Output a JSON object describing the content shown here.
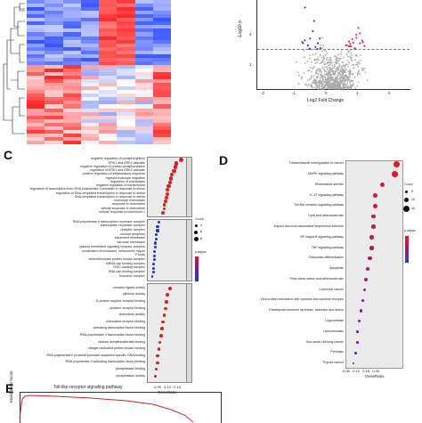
{
  "panelA": {
    "heatmap": {
      "type": "heatmap",
      "rows": 40,
      "cols": 8,
      "colors": {
        "low": "#3f5bd6",
        "mid": "#ffffff",
        "high": "#e82a2a"
      }
    }
  },
  "panelB": {
    "ylabel": "-Log10 p",
    "xlabel": "Log2 Fold Change",
    "yticks": [
      "2",
      "1"
    ],
    "xticks": [
      "-2",
      "-1",
      "0",
      "1",
      "2"
    ]
  },
  "panelC": {
    "label": "C",
    "facets": [
      {
        "terms": [
          "negative regulation of phosphorylation",
          "ERK1 and ERK2 cascade",
          "negative regulation of protein phosphorylation",
          "regulation of ERK1 and ERK2 cascade",
          "positive regulation of inflammatory response",
          "myeloid leukocyte migration",
          "regulation of chemotaxis",
          "negative regulation of transcription",
          "regulation of transcription from RNA polymerase II promoter in response to stress",
          "regulation of DNA-templated transcription in response to stress",
          "DNA-templated transcription in response to stress",
          "monocyte chemotaxis",
          "response to chemokine",
          "cellular response to chemokine",
          "cellular response to interleukin-1"
        ],
        "ratios": [
          0.15,
          0.13,
          0.125,
          0.12,
          0.11,
          0.105,
          0.1,
          0.095,
          0.09,
          0.09,
          0.085,
          0.08,
          0.075,
          0.075,
          0.07
        ]
      },
      {
        "terms": [
          "RNA polymerase II transcription repressor complex",
          "transcription repressor complex",
          "receptor complex",
          "nuclear periphery",
          "basement membrane",
          "vacuolar membrane",
          "plasma membrane signaling receptor complex",
          "condensed chromosome, centromeric region",
          "P-body",
          "serine/threonine protein kinase complex",
          "mRNA cap binding complex",
          "RISC-loading complex",
          "RNA cap binding complex",
          "telomeric complex"
        ],
        "ratios": [
          0.05,
          0.045,
          0.045,
          0.04,
          0.04,
          0.035,
          0.035,
          0.03,
          0.03,
          0.03,
          0.025,
          0.025,
          0.025,
          0.02
        ]
      },
      {
        "terms": [
          "receptor ligand activity",
          "cytokine activity",
          "G-protein coupled receptor binding",
          "cytokine receptor binding",
          "chemokine activity",
          "chemokine receptor binding",
          "activating transcription factor binding",
          "RNA polymerase II transcription factor binding",
          "histone acetyltransferase binding",
          "mitogen-activated protein kinase binding",
          "RNA polymerase II proximal promoter sequence-specific DNA binding",
          "RNA polymerase II activating transcription factor binding",
          "phosphatase binding",
          "phosphatase activity"
        ],
        "ratios": [
          0.1,
          0.09,
          0.085,
          0.08,
          0.075,
          0.07,
          0.065,
          0.06,
          0.055,
          0.05,
          0.045,
          0.045,
          0.04,
          0.035
        ]
      }
    ],
    "xlabel": "GeneRatio",
    "xticks": [
      "0.05",
      "0.10",
      "0.15"
    ],
    "legend": {
      "count_title": "Count",
      "count_values": [
        "4",
        "6",
        "8"
      ],
      "p_title": "p.adjust"
    }
  },
  "panelD": {
    "label": "D",
    "terms": [
      "Transcriptional misregulation in cancer",
      "MAPK signaling pathway",
      "Rheumatoid arthritis",
      "IL-17 signaling pathway",
      "Toll-like receptor signaling pathway",
      "Lipid and atherosclerosis",
      "Kaposi sarcoma-associated herpesvirus infection",
      "NF-kappa B signaling pathway",
      "TNF signaling pathway",
      "Osteoclast differentiation",
      "Apoptosis",
      "Fluid shear stress and atherosclerosis",
      "Colorectal cancer",
      "Viral protein interaction with cytokine and cytokine receptor",
      "Parathyroid hormone synthesis, secretion and action",
      "Legionellosis",
      "Leishmaniasis",
      "Non-small cell lung cancer",
      "Pertussis",
      "Thyroid cancer"
    ],
    "ratios": [
      0.2,
      0.195,
      0.16,
      0.14,
      0.14,
      0.135,
      0.135,
      0.13,
      0.13,
      0.125,
      0.12,
      0.115,
      0.11,
      0.105,
      0.1,
      0.095,
      0.09,
      0.09,
      0.085,
      0.08
    ],
    "xlabel": "GeneRatio",
    "xticks": [
      "0.08",
      "0.12",
      "0.16",
      "0.20"
    ],
    "legend": {
      "count_title": "Count",
      "count_values": [
        "5",
        "10",
        "15"
      ],
      "p_title": "p.adjust"
    }
  },
  "panelE": {
    "label": "E",
    "title": "Toll-like receptor signaling pathway",
    "ylabel": "Enrichment Score"
  }
}
